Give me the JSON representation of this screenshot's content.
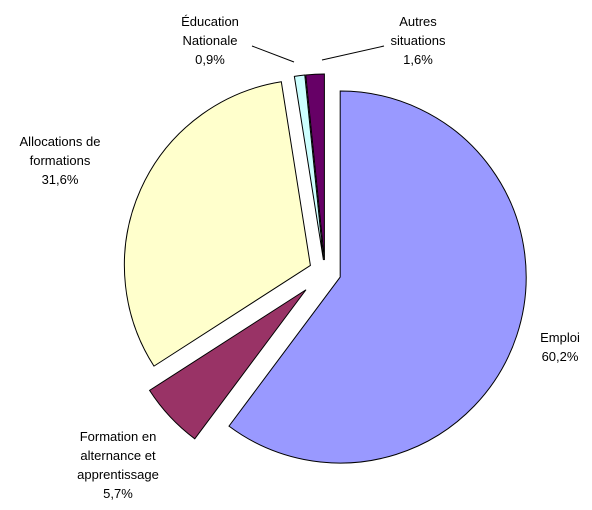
{
  "chart_data": {
    "type": "pie",
    "categories": [
      "Emploi",
      "Formation en alternance et apprentissage",
      "Allocations de formations",
      "Éducation Nationale",
      "Autres situations"
    ],
    "values": [
      60.2,
      5.7,
      31.6,
      0.9,
      1.6
    ],
    "value_labels": [
      "60,2%",
      "5,7%",
      "31,6%",
      "0,9%",
      "1,6%"
    ],
    "colors": [
      "#9999ff",
      "#993366",
      "#ffffcc",
      "#ccffff",
      "#660066"
    ]
  }
}
